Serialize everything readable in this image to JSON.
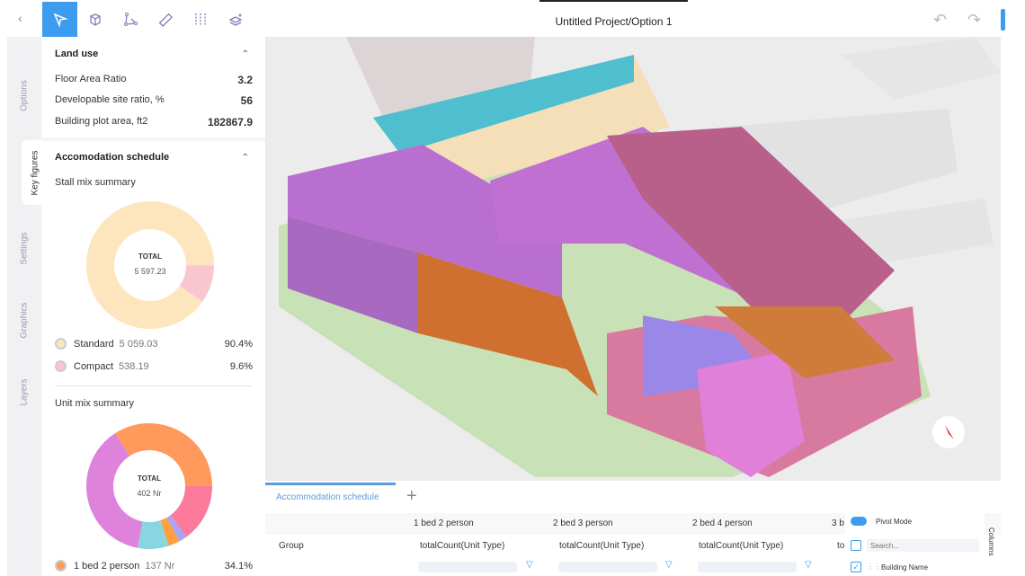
{
  "toolbar": {
    "tools": [
      "select-icon",
      "box-icon",
      "polyline-icon",
      "ruler-icon",
      "grid-lines-icon",
      "layers-add-icon"
    ],
    "active": "select-icon",
    "title": "Untitled Project/Option 1"
  },
  "rail": {
    "tabs": [
      "Options",
      "Key figures",
      "Settings",
      "Graphics",
      "Layers"
    ],
    "active": "Key figures"
  },
  "land_use": {
    "title": "Land use",
    "rows": [
      {
        "label": "Floor Area Ratio",
        "value": "3.2"
      },
      {
        "label": "Developable site ratio, %",
        "value": "56"
      },
      {
        "label": "Building plot area, ft2",
        "value": "182867.9"
      }
    ]
  },
  "accommodation": {
    "title": "Accomodation schedule",
    "stall": {
      "title": "Stall mix summary",
      "total_label": "TOTAL",
      "total_value": "5 597.23",
      "items": [
        {
          "label": "Standard",
          "value": "5 059.03",
          "pct": "90.4%",
          "color": "#fde6bd"
        },
        {
          "label": "Compact",
          "value": "538.19",
          "pct": "9.6%",
          "color": "#f9c6cf"
        }
      ]
    },
    "unit": {
      "title": "Unit mix summary",
      "total_label": "TOTAL",
      "total_value": "402 Nr",
      "items": [
        {
          "label": "1 bed 2 person",
          "value": "137 Nr",
          "pct": "34.1%",
          "color": "#ff9a5c"
        }
      ]
    }
  },
  "chart_data": [
    {
      "type": "pie",
      "title": "Stall mix summary",
      "categories": [
        "Standard",
        "Compact"
      ],
      "values": [
        90.4,
        9.6
      ],
      "colors": [
        "#fde6bd",
        "#f9c6cf"
      ]
    },
    {
      "type": "pie",
      "title": "Unit mix summary",
      "categories": [
        "1 bed 2 person",
        "",
        "",
        "",
        "",
        ""
      ],
      "values": [
        34.1,
        15,
        2,
        3,
        8,
        37.8
      ],
      "colors": [
        "#ff9a5c",
        "#fb7a9c",
        "#a6a6f5",
        "#ffa040",
        "#89d6e0",
        "#de82dc"
      ]
    }
  ],
  "bottom": {
    "tab": "Accommodation schedule",
    "columns": [
      "1 bed 2 person",
      "2 bed 3 person",
      "2 bed 4 person",
      "3 b"
    ],
    "row_label": "Group",
    "row_values": [
      "totalCount(Unit Type)",
      "totalCount(Unit Type)",
      "totalCount(Unit Type)",
      "to"
    ],
    "pivot": {
      "label": "Pivot Mode",
      "search_placeholder": "Search...",
      "item": "Building Name",
      "side_label": "Columns"
    }
  }
}
